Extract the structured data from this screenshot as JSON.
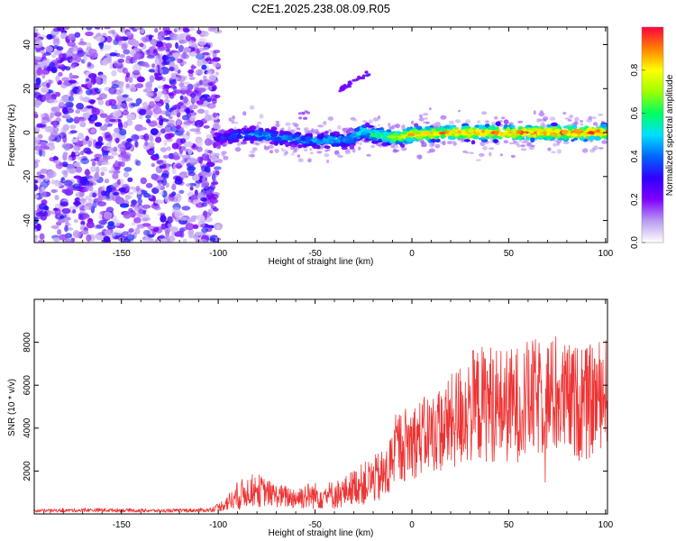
{
  "chart_data": [
    {
      "type": "heatmap",
      "title": "C2E1.2025.238.08.09.R05",
      "xlabel": "Height of straight line (km)",
      "ylabel": "Frequency (Hz)",
      "xlim": [
        -195,
        101
      ],
      "ylim": [
        -50,
        48
      ],
      "xticks": [
        -150,
        -100,
        -50,
        0,
        50,
        100
      ],
      "yticks": [
        -40,
        -20,
        0,
        20,
        40
      ],
      "xtick_labels": [
        "-150",
        "-100",
        "-50",
        "0",
        "50",
        "100"
      ],
      "ytick_labels": [
        "-40",
        "-20",
        "0",
        "20",
        "40"
      ],
      "colorbar": {
        "label": "Normalized spectral amplitude",
        "range": [
          0,
          1
        ],
        "ticks": [
          0.0,
          0.2,
          0.4,
          0.6,
          0.8
        ],
        "tick_labels": [
          "0.0",
          "0.2",
          "0.4",
          "0.6",
          "0.8"
        ],
        "colors": [
          "#ffffff",
          "#b99cf0",
          "#7f00ff",
          "#3000ff",
          "#0066ff",
          "#00e0ff",
          "#00ff60",
          "#a0ff00",
          "#ffff00",
          "#ff8000",
          "#ff0040"
        ]
      },
      "features": {
        "noise_region_x": [
          -195,
          -100
        ],
        "noise_amplitude": 0.3,
        "signal_ridge": {
          "x": [
            -102,
            -90,
            -80,
            -70,
            -60,
            -50,
            -40,
            -35,
            -30,
            -25,
            -20,
            -10,
            0,
            20,
            40,
            60,
            80,
            101
          ],
          "y": [
            -3,
            -1,
            -1,
            -2,
            -3,
            -4,
            -3,
            -4,
            -2,
            1,
            -1,
            -2,
            -1,
            0,
            0,
            0,
            0,
            0
          ],
          "amplitude": [
            0.3,
            0.4,
            0.45,
            0.45,
            0.42,
            0.45,
            0.5,
            0.45,
            0.5,
            0.55,
            0.6,
            0.75,
            0.85,
            0.9,
            0.92,
            0.92,
            0.95,
            0.95
          ]
        },
        "streak": {
          "x": [
            -38,
            -22
          ],
          "y": [
            19,
            27
          ],
          "amplitude": 0.2
        },
        "mid_blob": {
          "x": -56,
          "y": 8,
          "amplitude": 0.15
        }
      }
    },
    {
      "type": "line",
      "xlabel": "Height of straight line (km)",
      "ylabel": "SNR (10 * v/v)",
      "xlim": [
        -195,
        101
      ],
      "ylim": [
        0,
        10000
      ],
      "xticks": [
        -150,
        -100,
        -50,
        0,
        50,
        100
      ],
      "yticks": [
        2000,
        4000,
        6000,
        8000
      ],
      "xtick_labels": [
        "-150",
        "-100",
        "-50",
        "0",
        "50",
        "100"
      ],
      "ytick_labels": [
        "2000",
        "4000",
        "6000",
        "8000"
      ],
      "series": [
        {
          "name": "SNR",
          "color": "#ee3333",
          "x": [
            -195,
            -160,
            -130,
            -105,
            -100,
            -96,
            -92,
            -88,
            -84,
            -80,
            -75,
            -70,
            -65,
            -60,
            -55,
            -50,
            -45,
            -40,
            -35,
            -30,
            -25,
            -20,
            -16,
            -12,
            -10,
            -5,
            0,
            5,
            10,
            15,
            20,
            25,
            30,
            40,
            50,
            60,
            70,
            80,
            90,
            101
          ],
          "mean": [
            150,
            180,
            150,
            180,
            300,
            500,
            700,
            900,
            1100,
            1100,
            1000,
            850,
            800,
            750,
            850,
            850,
            850,
            900,
            1000,
            1300,
            1400,
            1600,
            1700,
            1900,
            2900,
            3200,
            3400,
            3600,
            3800,
            3900,
            4200,
            4600,
            5000,
            5200,
            5000,
            5300,
            5500,
            5300,
            5100,
            5800
          ],
          "spread": [
            80,
            100,
            90,
            100,
            200,
            400,
            600,
            800,
            800,
            900,
            700,
            600,
            600,
            600,
            700,
            700,
            700,
            750,
            800,
            900,
            1100,
            1200,
            1400,
            1500,
            1800,
            1900,
            2000,
            2000,
            2100,
            2200,
            2500,
            2800,
            3000,
            3100,
            3000,
            3100,
            3100,
            3000,
            3000,
            2800
          ],
          "points": 1400
        }
      ]
    }
  ]
}
